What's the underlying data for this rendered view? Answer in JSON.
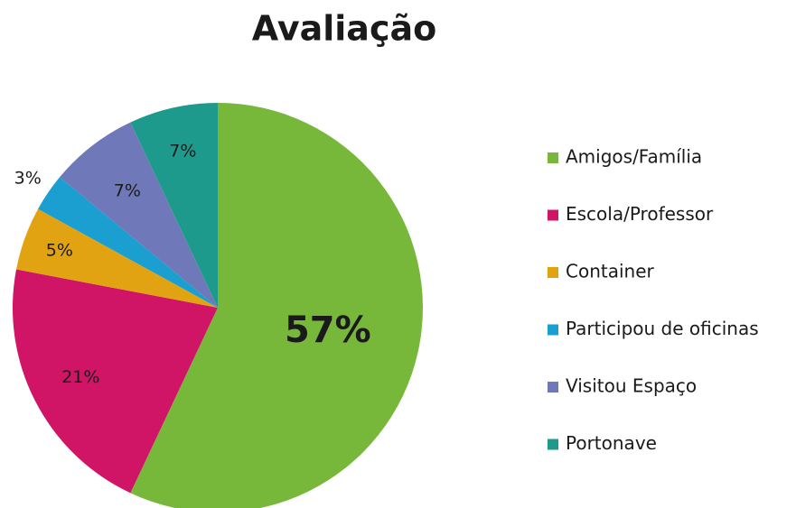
{
  "chart_data": {
    "type": "pie",
    "title": "Avaliação",
    "categories": [
      "Amigos/Família",
      "Escola/Professor",
      "Container",
      "Participou de oficinas",
      "Visitou Espaço",
      "Portonave"
    ],
    "values": [
      57,
      21,
      5,
      3,
      7,
      7
    ],
    "value_labels": [
      "57%",
      "21%",
      "5%",
      "3%",
      "7%",
      "7%"
    ],
    "colors": [
      "#77b83a",
      "#d01466",
      "#e2a312",
      "#1a9fd0",
      "#6f78b8",
      "#1e9a8c"
    ],
    "legend": "right"
  }
}
